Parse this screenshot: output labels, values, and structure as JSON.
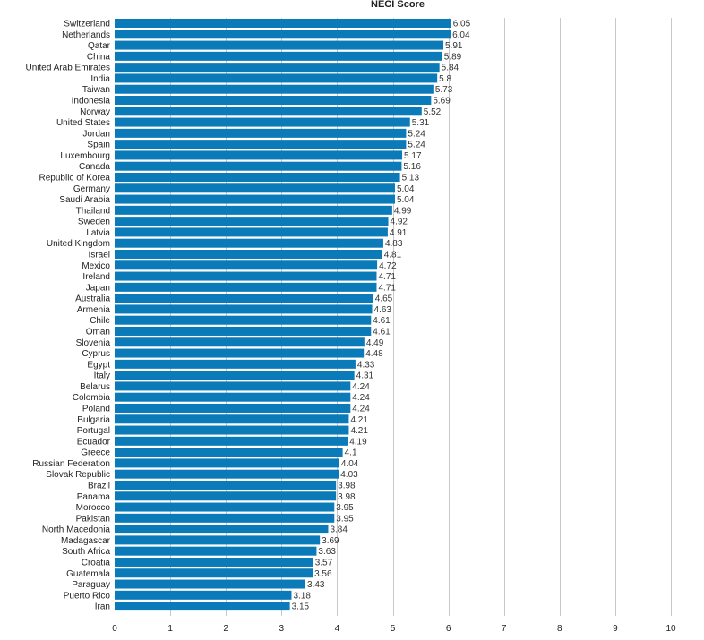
{
  "chart_data": {
    "type": "bar",
    "orientation": "horizontal",
    "title": "NECI Score",
    "xlabel": "",
    "ylabel": "",
    "xlim": [
      0,
      10
    ],
    "x_ticks": [
      "0",
      "1",
      "2",
      "3",
      "4",
      "5",
      "6",
      "7",
      "8",
      "9",
      "10"
    ],
    "grid": true,
    "bar_color": "#0a7ab8",
    "categories": [
      "Switzerland",
      "Netherlands",
      "Qatar",
      "China",
      "United Arab Emirates",
      "India",
      "Taiwan",
      "Indonesia",
      "Norway",
      "United States",
      "Jordan",
      "Spain",
      "Luxembourg",
      "Canada",
      "Republic of Korea",
      "Germany",
      "Saudi Arabia",
      "Thailand",
      "Sweden",
      "Latvia",
      "United Kingdom",
      "Israel",
      "Mexico",
      "Ireland",
      "Japan",
      "Australia",
      "Armenia",
      "Chile",
      "Oman",
      "Slovenia",
      "Cyprus",
      "Egypt",
      "Italy",
      "Belarus",
      "Colombia",
      "Poland",
      "Bulgaria",
      "Portugal",
      "Ecuador",
      "Greece",
      "Russian Federation",
      "Slovak Republic",
      "Brazil",
      "Panama",
      "Morocco",
      "Pakistan",
      "North Macedonia",
      "Madagascar",
      "South Africa",
      "Croatia",
      "Guatemala",
      "Paraguay",
      "Puerto Rico",
      "Iran"
    ],
    "values": [
      6.05,
      6.04,
      5.91,
      5.89,
      5.84,
      5.8,
      5.73,
      5.69,
      5.52,
      5.31,
      5.24,
      5.24,
      5.17,
      5.16,
      5.13,
      5.04,
      5.04,
      4.99,
      4.92,
      4.91,
      4.83,
      4.81,
      4.72,
      4.71,
      4.71,
      4.65,
      4.63,
      4.61,
      4.61,
      4.49,
      4.48,
      4.33,
      4.31,
      4.24,
      4.24,
      4.24,
      4.21,
      4.21,
      4.19,
      4.1,
      4.04,
      4.03,
      3.98,
      3.98,
      3.95,
      3.95,
      3.84,
      3.69,
      3.63,
      3.57,
      3.56,
      3.43,
      3.18,
      3.15
    ],
    "value_labels": [
      "6.05",
      "6.04",
      "5.91",
      "5.89",
      "5.84",
      "5.8",
      "5.73",
      "5.69",
      "5.52",
      "5.31",
      "5.24",
      "5.24",
      "5.17",
      "5.16",
      "5.13",
      "5.04",
      "5.04",
      "4.99",
      "4.92",
      "4.91",
      "4.83",
      "4.81",
      "4.72",
      "4.71",
      "4.71",
      "4.65",
      "4.63",
      "4.61",
      "4.61",
      "4.49",
      "4.48",
      "4.33",
      "4.31",
      "4.24",
      "4.24",
      "4.24",
      "4.21",
      "4.21",
      "4.19",
      "4.1",
      "4.04",
      "4.03",
      "3.98",
      "3.98",
      "3.95",
      "3.95",
      "3.84",
      "3.69",
      "3.63",
      "3.57",
      "3.56",
      "3.43",
      "3.18",
      "3.15"
    ]
  }
}
